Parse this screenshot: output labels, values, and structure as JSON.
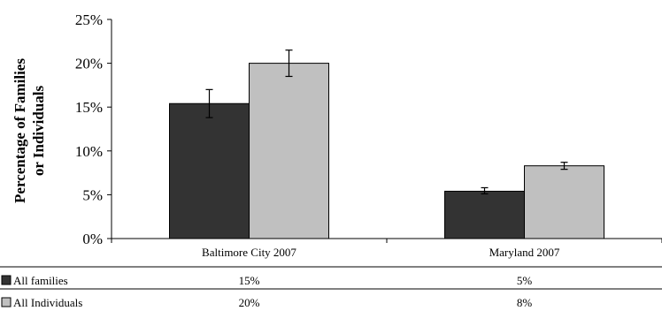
{
  "chart_data": {
    "type": "bar",
    "ylabel_lines": [
      "Percentage of Families",
      "or Individuals"
    ],
    "categories": [
      "Baltimore City 2007",
      "Maryland 2007"
    ],
    "ylim": [
      0,
      25
    ],
    "y_ticks": [
      {
        "value": 0,
        "label": "0%"
      },
      {
        "value": 5,
        "label": "5%"
      },
      {
        "value": 10,
        "label": "10%"
      },
      {
        "value": 15,
        "label": "15%"
      },
      {
        "value": 20,
        "label": "20%"
      },
      {
        "value": 25,
        "label": "25%"
      }
    ],
    "grid": false,
    "legend": "data-table-below",
    "series": [
      {
        "name": "All families",
        "color": "#333333",
        "values": [
          15.4,
          5.4
        ],
        "error_low": [
          13.8,
          5.1
        ],
        "error_high": [
          17.0,
          5.8
        ],
        "table_labels": [
          "15%",
          "5%"
        ]
      },
      {
        "name": "All Individuals",
        "color": "#c0c0c0",
        "values": [
          20.0,
          8.3
        ],
        "error_low": [
          18.5,
          7.9
        ],
        "error_high": [
          21.5,
          8.7
        ],
        "table_labels": [
          "20%",
          "8%"
        ]
      }
    ]
  }
}
